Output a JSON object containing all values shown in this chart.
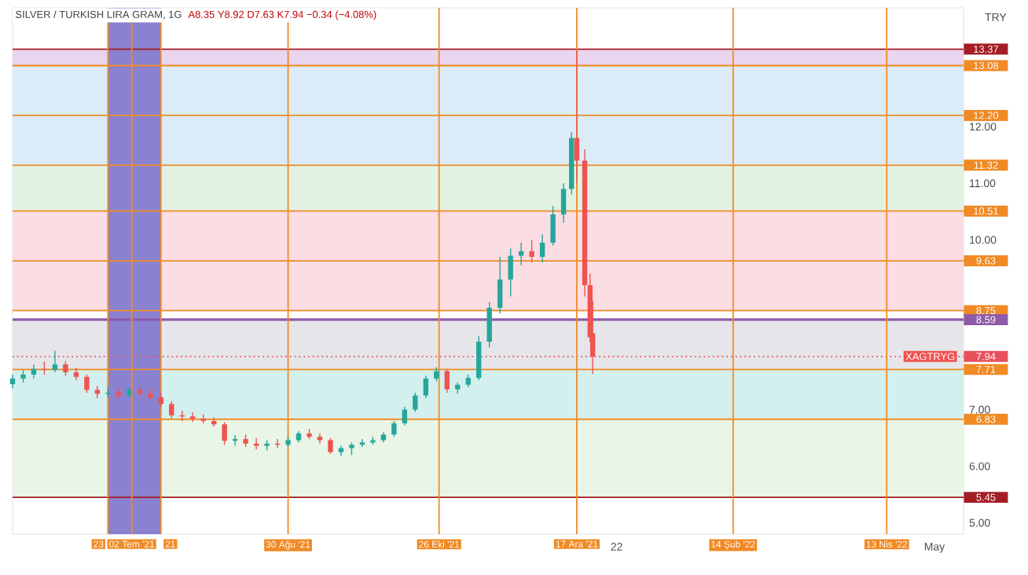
{
  "chart_data": {
    "type": "candlestick",
    "title": "SILVER / TURKISH LIRA GRAM, 1G",
    "ylabel": "TRY",
    "annotations": [
      "A8.35 Y8.92 D7.63 K7.94 −0.34 (−4.08%)",
      "XAGTRYG"
    ],
    "x": [
      "2021-05-18",
      "2021-05-22",
      "2021-05-26",
      "2021-05-30",
      "2021-06-03",
      "2021-06-07",
      "2021-06-11",
      "2021-06-15",
      "2021-06-19",
      "2021-06-23",
      "2021-06-27",
      "2021-07-01",
      "2021-07-05",
      "2021-07-09",
      "2021-07-13",
      "2021-07-17",
      "2021-07-21",
      "2021-07-25",
      "2021-07-29",
      "2021-08-02",
      "2021-08-06",
      "2021-08-10",
      "2021-08-14",
      "2021-08-18",
      "2021-08-22",
      "2021-08-26",
      "2021-08-30",
      "2021-09-03",
      "2021-09-07",
      "2021-09-11",
      "2021-09-15",
      "2021-09-19",
      "2021-09-23",
      "2021-09-27",
      "2021-10-01",
      "2021-10-05",
      "2021-10-09",
      "2021-10-13",
      "2021-10-17",
      "2021-10-21",
      "2021-10-25",
      "2021-10-29",
      "2021-11-02",
      "2021-11-06",
      "2021-11-10",
      "2021-11-14",
      "2021-11-18",
      "2021-11-22",
      "2021-11-26",
      "2021-11-30",
      "2021-12-04",
      "2021-12-08",
      "2021-12-12",
      "2021-12-15",
      "2021-12-17",
      "2021-12-20",
      "2021-12-22",
      "2021-12-23"
    ],
    "ohlc": [
      [
        7.45,
        7.62,
        7.38,
        7.55
      ],
      [
        7.55,
        7.7,
        7.48,
        7.62
      ],
      [
        7.62,
        7.8,
        7.55,
        7.72
      ],
      [
        7.72,
        7.85,
        7.62,
        7.7
      ],
      [
        7.7,
        8.04,
        7.66,
        7.8
      ],
      [
        7.8,
        7.86,
        7.6,
        7.66
      ],
      [
        7.66,
        7.74,
        7.52,
        7.58
      ],
      [
        7.58,
        7.62,
        7.3,
        7.35
      ],
      [
        7.35,
        7.42,
        7.2,
        7.28
      ],
      [
        7.28,
        7.4,
        7.22,
        7.3
      ],
      [
        7.3,
        7.38,
        7.2,
        7.25
      ],
      [
        7.25,
        7.4,
        7.22,
        7.35
      ],
      [
        7.35,
        7.42,
        7.24,
        7.28
      ],
      [
        7.28,
        7.35,
        7.18,
        7.22
      ],
      [
        7.22,
        7.3,
        7.05,
        7.1
      ],
      [
        7.1,
        7.15,
        6.85,
        6.9
      ],
      [
        6.9,
        6.98,
        6.8,
        6.88
      ],
      [
        6.88,
        6.95,
        6.78,
        6.84
      ],
      [
        6.84,
        6.92,
        6.76,
        6.8
      ],
      [
        6.8,
        6.86,
        6.7,
        6.74
      ],
      [
        6.74,
        6.78,
        6.38,
        6.45
      ],
      [
        6.45,
        6.55,
        6.36,
        6.48
      ],
      [
        6.48,
        6.56,
        6.34,
        6.4
      ],
      [
        6.4,
        6.5,
        6.3,
        6.36
      ],
      [
        6.36,
        6.46,
        6.28,
        6.4
      ],
      [
        6.4,
        6.48,
        6.32,
        6.38
      ],
      [
        6.38,
        6.52,
        6.34,
        6.46
      ],
      [
        6.46,
        6.62,
        6.42,
        6.58
      ],
      [
        6.58,
        6.66,
        6.48,
        6.52
      ],
      [
        6.52,
        6.58,
        6.4,
        6.46
      ],
      [
        6.46,
        6.5,
        6.22,
        6.25
      ],
      [
        6.25,
        6.36,
        6.18,
        6.32
      ],
      [
        6.32,
        6.42,
        6.2,
        6.38
      ],
      [
        6.38,
        6.48,
        6.34,
        6.42
      ],
      [
        6.42,
        6.52,
        6.38,
        6.46
      ],
      [
        6.46,
        6.6,
        6.42,
        6.56
      ],
      [
        6.56,
        6.8,
        6.52,
        6.76
      ],
      [
        6.76,
        7.05,
        6.72,
        7.0
      ],
      [
        7.0,
        7.3,
        6.96,
        7.25
      ],
      [
        7.25,
        7.6,
        7.2,
        7.55
      ],
      [
        7.55,
        7.75,
        7.5,
        7.68
      ],
      [
        7.68,
        7.72,
        7.3,
        7.36
      ],
      [
        7.36,
        7.48,
        7.28,
        7.44
      ],
      [
        7.44,
        7.62,
        7.4,
        7.56
      ],
      [
        7.56,
        8.3,
        7.52,
        8.2
      ],
      [
        8.2,
        8.9,
        8.1,
        8.8
      ],
      [
        8.8,
        9.7,
        8.7,
        9.3
      ],
      [
        9.3,
        9.85,
        9.0,
        9.72
      ],
      [
        9.72,
        9.95,
        9.55,
        9.8
      ],
      [
        9.8,
        10.0,
        9.6,
        9.7
      ],
      [
        9.7,
        10.1,
        9.6,
        9.95
      ],
      [
        9.95,
        10.6,
        9.9,
        10.45
      ],
      [
        10.45,
        11.0,
        10.3,
        10.9
      ],
      [
        10.9,
        11.9,
        10.8,
        11.8
      ],
      [
        11.8,
        13.37,
        11.0,
        11.4
      ],
      [
        11.4,
        11.6,
        9.0,
        9.2
      ],
      [
        9.2,
        9.4,
        8.2,
        8.28
      ],
      [
        8.35,
        8.92,
        7.63,
        7.94
      ]
    ],
    "colors": [
      "#26a69a",
      "#26a69a",
      "#26a69a",
      "#ef5350",
      "#26a69a",
      "#ef5350",
      "#ef5350",
      "#ef5350",
      "#ef5350",
      "#26a69a",
      "#ef5350",
      "#26a69a",
      "#ef5350",
      "#ef5350",
      "#ef5350",
      "#ef5350",
      "#ef5350",
      "#ef5350",
      "#ef5350",
      "#ef5350",
      "#ef5350",
      "#26a69a",
      "#ef5350",
      "#ef5350",
      "#26a69a",
      "#ef5350",
      "#26a69a",
      "#26a69a",
      "#ef5350",
      "#ef5350",
      "#ef5350",
      "#26a69a",
      "#26a69a",
      "#26a69a",
      "#26a69a",
      "#26a69a",
      "#26a69a",
      "#26a69a",
      "#26a69a",
      "#26a69a",
      "#26a69a",
      "#ef5350",
      "#26a69a",
      "#26a69a",
      "#26a69a",
      "#26a69a",
      "#26a69a",
      "#26a69a",
      "#26a69a",
      "#ef5350",
      "#26a69a",
      "#26a69a",
      "#26a69a",
      "#26a69a",
      "#ef5350",
      "#ef5350",
      "#ef5350",
      "#ef5350"
    ],
    "xlim": [
      "2021-05-18",
      "2022-05-12"
    ],
    "xticks": [
      {
        "value": "2022-01-01",
        "label": "22"
      },
      {
        "value": "2022-05-01",
        "label": "May"
      }
    ],
    "ylim": [
      4.8,
      14.1
    ],
    "yticks": [
      {
        "value": 5,
        "label": "5.00"
      },
      {
        "value": 6,
        "label": "6.00"
      },
      {
        "value": 7,
        "label": "7.00"
      },
      {
        "value": 10,
        "label": "10.00"
      },
      {
        "value": 11,
        "label": "11.00"
      },
      {
        "value": 12,
        "label": "12.00"
      }
    ],
    "bands": [
      {
        "axis": "y",
        "from": 13.08,
        "to": 13.37,
        "color": "#ead5ee"
      },
      {
        "axis": "y",
        "from": 11.32,
        "to": 13.08,
        "color": "#dcebf8"
      },
      {
        "axis": "y",
        "from": 10.51,
        "to": 11.32,
        "color": "#e1f2e3"
      },
      {
        "axis": "y",
        "from": 8.75,
        "to": 10.51,
        "color": "#fbdde4"
      },
      {
        "axis": "y",
        "from": 7.71,
        "to": 8.59,
        "color": "#e6e6ea"
      },
      {
        "axis": "y",
        "from": 6.83,
        "to": 7.71,
        "color": "#d3f0ee"
      },
      {
        "axis": "y",
        "from": 5.45,
        "to": 6.83,
        "color": "#e9f5e6"
      },
      {
        "axis": "x",
        "from": "2021-06-23",
        "to": "2021-07-13",
        "color": "#8a82d0"
      }
    ],
    "ref_lines": [
      {
        "axis": "y",
        "value": 13.37,
        "label": "13.37",
        "color": "#a31d24"
      },
      {
        "axis": "y",
        "value": 13.08,
        "label": "13.08",
        "color": "#f08a24"
      },
      {
        "axis": "y",
        "value": 12.2,
        "label": "12.20",
        "color": "#f08a24"
      },
      {
        "axis": "y",
        "value": 11.32,
        "label": "11.32",
        "color": "#f08a24"
      },
      {
        "axis": "y",
        "value": 10.51,
        "label": "10.51",
        "color": "#f08a24"
      },
      {
        "axis": "y",
        "value": 9.63,
        "label": "9.63",
        "color": "#f08a24"
      },
      {
        "axis": "y",
        "value": 8.75,
        "label": "8.75",
        "color": "#f08a24"
      },
      {
        "axis": "y",
        "value": 8.59,
        "label": "8.59",
        "color": "#8e5ba8"
      },
      {
        "axis": "y",
        "value": 7.94,
        "label": "7.94",
        "color": "#e8505b",
        "line_style": "dotted"
      },
      {
        "axis": "y",
        "value": 7.71,
        "label": "7.71",
        "color": "#f08a24"
      },
      {
        "axis": "y",
        "value": 6.83,
        "label": "6.83",
        "color": "#f08a24"
      },
      {
        "axis": "y",
        "value": 5.45,
        "label": "5.45",
        "color": "#a31d24"
      },
      {
        "axis": "x",
        "value": "2021-06-23",
        "label": "23",
        "color": "#f08a24"
      },
      {
        "axis": "x",
        "value": "2021-07-02",
        "label": "02 Tem '21",
        "color": "#f08a24"
      },
      {
        "axis": "x",
        "value": "2021-07-13",
        "label": "21",
        "color": "#f08a24"
      },
      {
        "axis": "x",
        "value": "2021-08-30",
        "label": "30 Ağu '21",
        "color": "#f08a24"
      },
      {
        "axis": "x",
        "value": "2021-10-26",
        "label": "26 Eki '21",
        "color": "#f08a24"
      },
      {
        "axis": "x",
        "value": "2021-12-17",
        "label": "17 Ara '21",
        "color": "#f08a24"
      },
      {
        "axis": "x",
        "value": "2022-02-14",
        "label": "14 Şub '22",
        "color": "#f08a24"
      },
      {
        "axis": "x",
        "value": "2022-04-13",
        "label": "13 Nis '22",
        "color": "#f08a24"
      }
    ]
  }
}
